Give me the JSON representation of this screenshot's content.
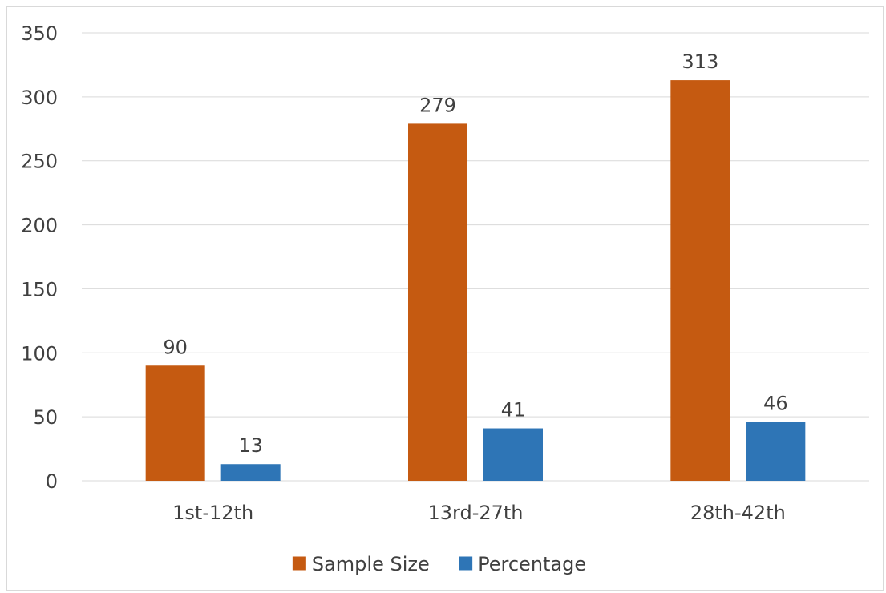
{
  "chart_data": {
    "type": "bar",
    "categories": [
      "1st-12th",
      "13rd-27th",
      "28th-42th"
    ],
    "series": [
      {
        "name": "Sample Size",
        "values": [
          90,
          279,
          313
        ],
        "color": "#c55a11"
      },
      {
        "name": "Percentage",
        "values": [
          13,
          41,
          46
        ],
        "color": "#2e75b6"
      }
    ],
    "ylim": [
      0,
      350
    ],
    "yticks": [
      0,
      50,
      100,
      150,
      200,
      250,
      300,
      350
    ],
    "grid": true,
    "legend_position": "bottom",
    "data_labels": true
  }
}
